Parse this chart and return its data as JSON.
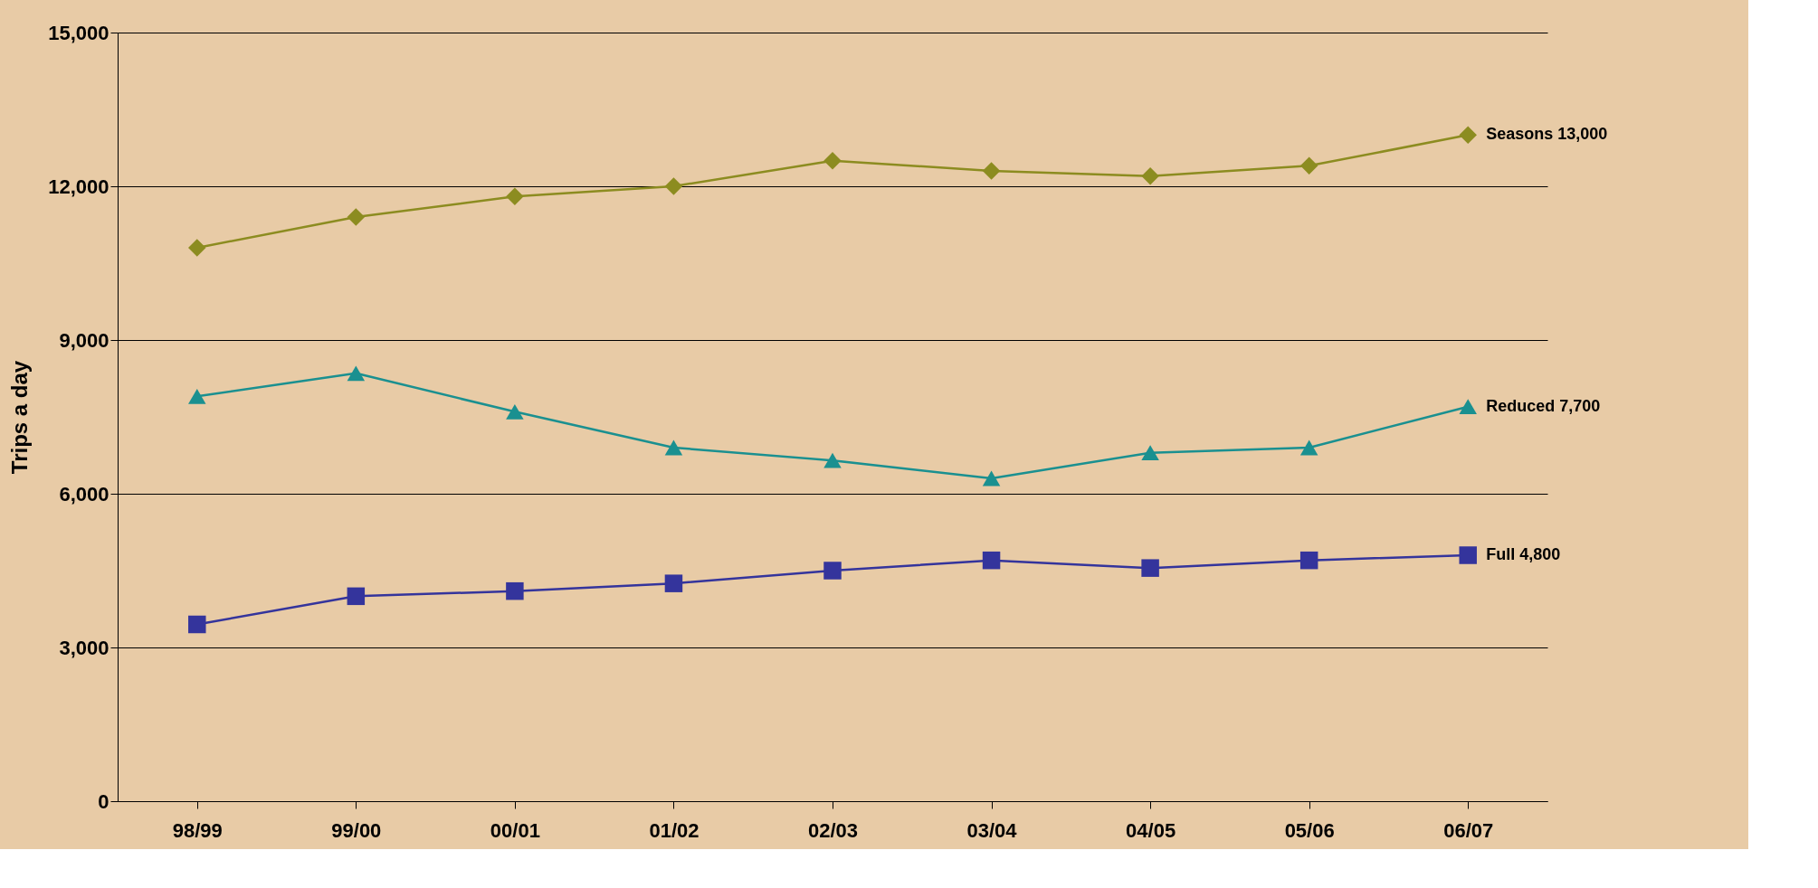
{
  "chart_data": {
    "type": "line",
    "ylabel": "Trips a day",
    "categories": [
      "98/99",
      "99/00",
      "00/01",
      "01/02",
      "02/03",
      "03/04",
      "04/05",
      "05/06",
      "06/07"
    ],
    "series": [
      {
        "name": "Seasons",
        "color": "#8c8c20",
        "marker": "diamond",
        "values": [
          10800,
          11400,
          11800,
          12000,
          12500,
          12300,
          12200,
          12400,
          13000
        ],
        "value_labels": [
          null,
          null,
          null,
          null,
          null,
          null,
          null,
          null,
          "13,000"
        ]
      },
      {
        "name": "Reduced",
        "color": "#1a9090",
        "marker": "triangle",
        "values": [
          7900,
          8350,
          7600,
          6900,
          6650,
          6300,
          6800,
          6900,
          7700
        ],
        "value_labels": [
          null,
          null,
          null,
          null,
          null,
          null,
          null,
          null,
          "7,700"
        ]
      },
      {
        "name": "Full",
        "color": "#34349c",
        "marker": "square",
        "values": [
          3450,
          4000,
          4100,
          4250,
          4500,
          4700,
          4550,
          4700,
          4800
        ],
        "value_labels": [
          null,
          null,
          null,
          null,
          null,
          null,
          null,
          null,
          "4,800"
        ]
      }
    ],
    "ylim": [
      0,
      15000
    ],
    "yticks": [
      0,
      {
        "value": 3000,
        "label": "3,000"
      },
      {
        "value": 6000,
        "label": "6,000"
      },
      {
        "value": 9000,
        "label": "9,000"
      },
      {
        "value": 12000,
        "label": "12,000"
      },
      {
        "value": 15000,
        "label": "15,000"
      }
    ],
    "grid": "y"
  }
}
